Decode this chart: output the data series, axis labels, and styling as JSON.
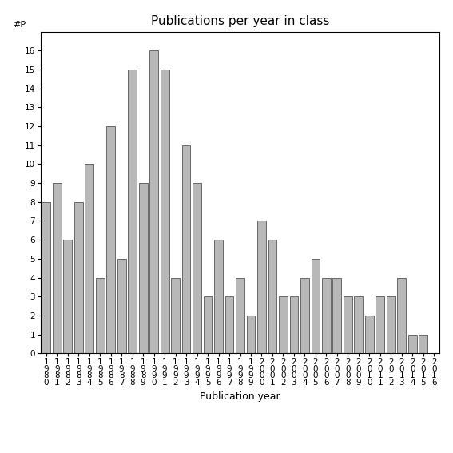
{
  "title": "Publications per year in class",
  "xlabel": "Publication year",
  "ylabel": "#P",
  "years": [
    "1980",
    "1981",
    "1982",
    "1983",
    "1984",
    "1985",
    "1986",
    "1987",
    "1988",
    "1989",
    "1990",
    "1991",
    "1992",
    "1993",
    "1994",
    "1995",
    "1996",
    "1997",
    "1998",
    "1999",
    "2000",
    "2001",
    "2002",
    "2003",
    "2004",
    "2005",
    "2006",
    "2007",
    "2008",
    "2009",
    "2010",
    "2011",
    "2012",
    "2013",
    "2014",
    "2015",
    "2016"
  ],
  "values": [
    8,
    9,
    6,
    8,
    10,
    4,
    12,
    5,
    15,
    9,
    16,
    15,
    4,
    11,
    9,
    3,
    6,
    3,
    4,
    2,
    7,
    6,
    3,
    3,
    4,
    5,
    4,
    4,
    3,
    3,
    2,
    3,
    3,
    4,
    1,
    1,
    0
  ],
  "bar_color": "#b8b8b8",
  "bar_edge_color": "#555555",
  "ylim": [
    0,
    17
  ],
  "yticks": [
    0,
    1,
    2,
    3,
    4,
    5,
    6,
    7,
    8,
    9,
    10,
    11,
    12,
    13,
    14,
    15,
    16
  ],
  "title_fontsize": 11,
  "xlabel_fontsize": 9,
  "tick_fontsize": 7.5,
  "background_color": "#ffffff",
  "fig_width": 5.67,
  "fig_height": 5.67,
  "dpi": 100
}
